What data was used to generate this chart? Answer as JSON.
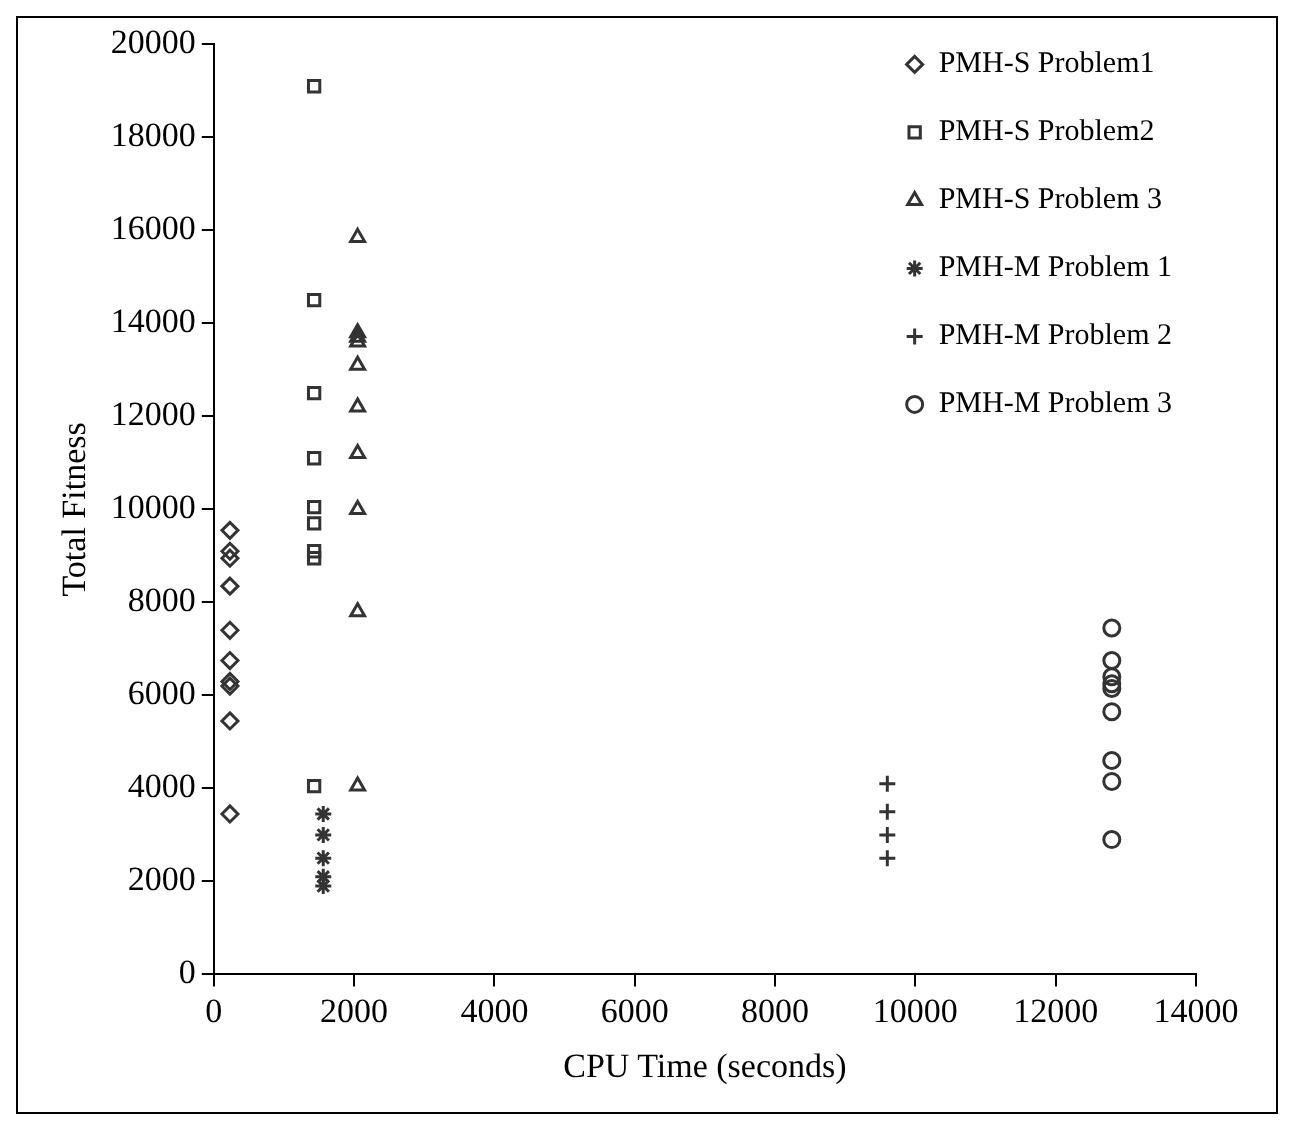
{
  "chart_data": {
    "type": "scatter",
    "xlabel": "CPU Time (seconds)",
    "ylabel": "Total Fitness",
    "xlim": [
      0,
      14000
    ],
    "xticks": [
      0,
      2000,
      4000,
      6000,
      8000,
      10000,
      12000,
      14000
    ],
    "ylim": [
      0,
      20000
    ],
    "yticks": [
      0,
      2000,
      4000,
      6000,
      8000,
      10000,
      12000,
      14000,
      16000,
      18000,
      20000
    ],
    "grid": false,
    "legend": "top right",
    "series": [
      {
        "name": "PMH-S Problem1",
        "color": "#333333",
        "marker": "diamond",
        "x": [
          230,
          230,
          230,
          230,
          230,
          230,
          230,
          230,
          230,
          230
        ],
        "values": [
          9550,
          9100,
          8950,
          8350,
          7400,
          6750,
          6300,
          6200,
          5450,
          3450
        ]
      },
      {
        "name": "PMH-S Problem2",
        "color": "#333333",
        "marker": "square",
        "x": [
          1430,
          1430,
          1430,
          1430,
          1430,
          1430,
          1430,
          1430,
          1430
        ],
        "values": [
          19100,
          14500,
          12500,
          11100,
          10050,
          9700,
          9100,
          8950,
          4050
        ]
      },
      {
        "name": "PMH-S Problem 3",
        "color": "#333333",
        "marker": "triangle",
        "x": [
          2050,
          2050,
          2050,
          2050,
          2050,
          2050,
          2050,
          2050,
          2050,
          2050
        ],
        "values": [
          15850,
          13800,
          13700,
          13600,
          13100,
          12200,
          11200,
          10000,
          7800,
          4050
        ]
      },
      {
        "name": "PMH-M Problem 1",
        "color": "#333333",
        "x": [
          1560,
          1560,
          1560,
          1560,
          1560
        ],
        "values": [
          3450,
          3000,
          2500,
          2100,
          1900
        ]
      },
      {
        "name": "PMH-M Problem 2",
        "color": "#333333",
        "marker": "cross",
        "x": [
          9600,
          9600,
          9600,
          9600
        ],
        "values": [
          4100,
          3500,
          3000,
          2500
        ]
      },
      {
        "name": "PMH-M Problem 3",
        "color": "#333333",
        "marker": "circle",
        "x": [
          12800,
          12800,
          12800,
          12800,
          12800,
          12800,
          12800,
          12800,
          12800
        ],
        "values": [
          7450,
          6750,
          6400,
          6250,
          6150,
          5650,
          4600,
          4150,
          2900
        ]
      }
    ]
  }
}
